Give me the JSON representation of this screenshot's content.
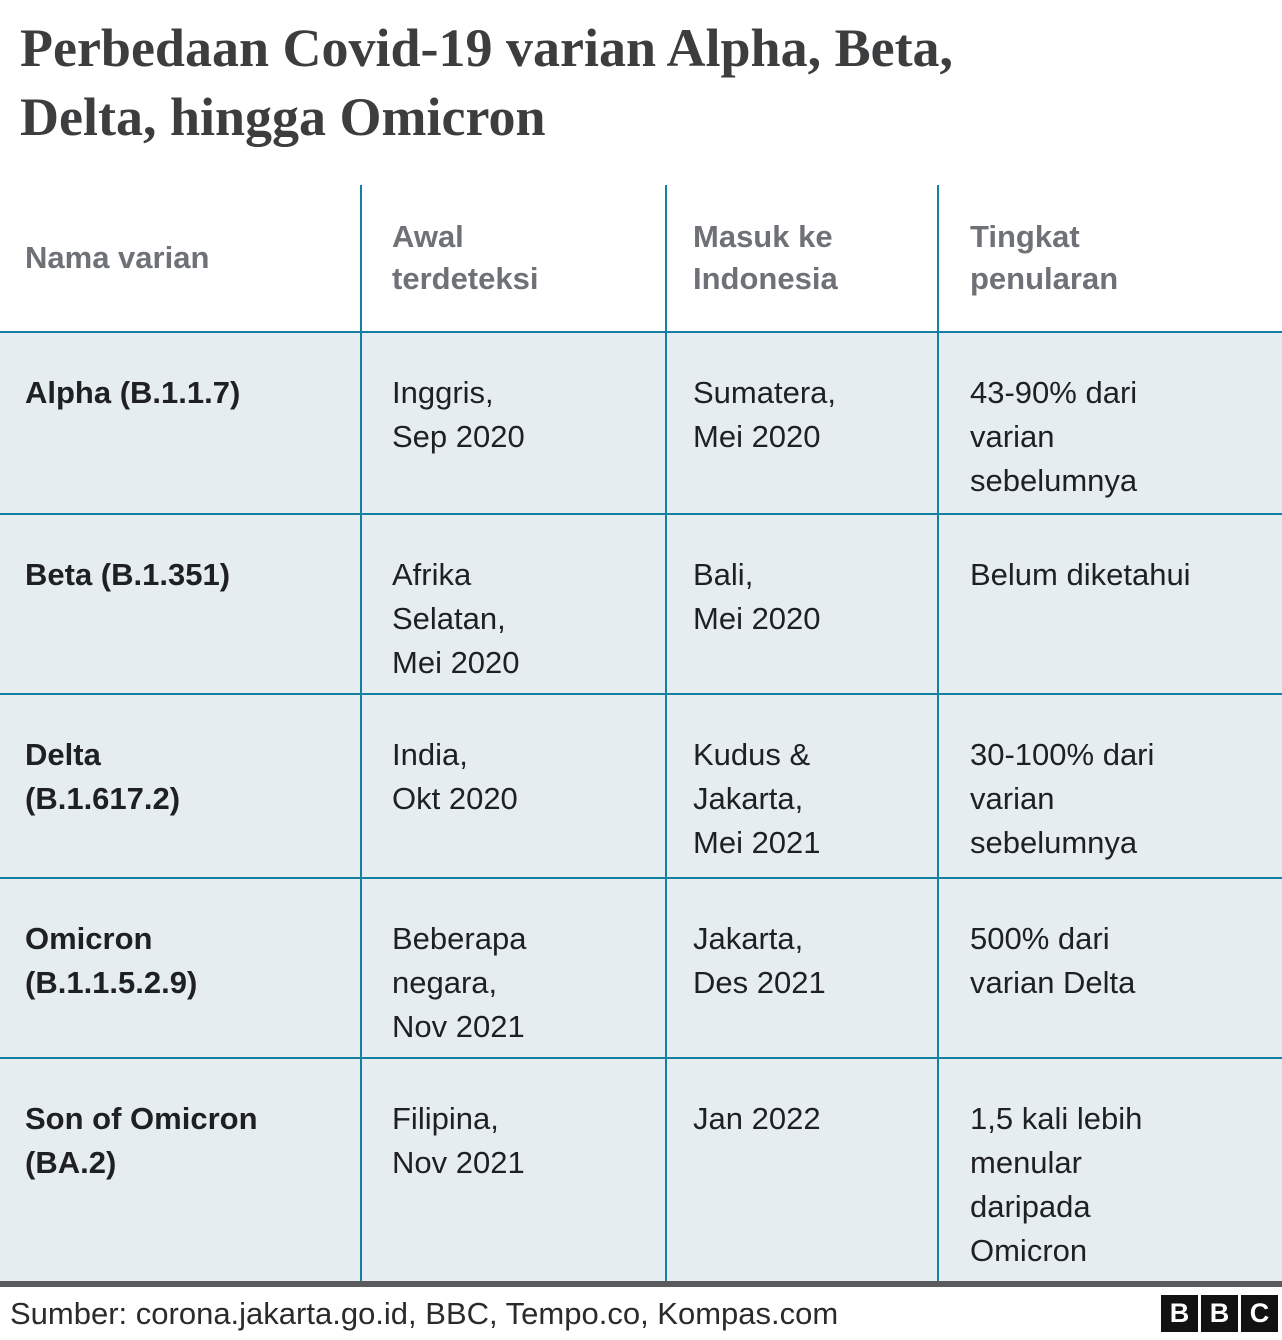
{
  "title": "Perbedaan Covid-19 varian Alpha, Beta,\nDelta, hingga Omicron",
  "table": {
    "columns": [
      "Nama varian",
      "Awal\nterdeteksi",
      "Masuk ke\nIndonesia",
      "Tingkat\npenularan"
    ],
    "rows": [
      {
        "name": "Alpha (B.1.1.7)",
        "detected": "Inggris,\nSep 2020",
        "entered": "Sumatera,\nMei 2020",
        "rate": "43-90% dari\nvarian\nsebelumnya"
      },
      {
        "name": "Beta (B.1.351)",
        "detected": "Afrika\nSelatan,\nMei 2020",
        "entered": "Bali,\nMei 2020",
        "rate": "Belum diketahui"
      },
      {
        "name": "Delta\n(B.1.617.2)",
        "detected": "India,\nOkt 2020",
        "entered": "Kudus &\nJakarta,\nMei 2021",
        "rate": "30-100% dari\nvarian\nsebelumnya"
      },
      {
        "name": "Omicron\n(B.1.1.5.2.9)",
        "detected": "Beberapa\nnegara,\nNov 2021",
        "entered": "Jakarta,\nDes 2021",
        "rate": "500% dari\nvarian Delta"
      },
      {
        "name": "Son of Omicron\n(BA.2)",
        "detected": "Filipina,\nNov 2021",
        "entered": "Jan 2022",
        "rate": "1,5 kali lebih\nmenular\ndaripada\nOmicron"
      }
    ]
  },
  "footer": {
    "source": "Sumber: corona.jakarta.go.id, BBC, Tempo.co, Kompas.com",
    "logo_letters": [
      "B",
      "B",
      "C"
    ]
  },
  "colors": {
    "accent_teal": "#1380a1",
    "row_background": "#e6edf0",
    "title_text": "#3b3d3f",
    "header_text": "#6e7276",
    "body_text": "#1e2022",
    "divider_bar": "#5a5b5d",
    "logo_block": "#121212"
  },
  "chart_data": {
    "type": "table",
    "title": "Perbedaan Covid-19 varian Alpha, Beta, Delta, hingga Omicron",
    "columns": [
      "Nama varian",
      "Awal terdeteksi",
      "Masuk ke Indonesia",
      "Tingkat penularan"
    ],
    "rows": [
      [
        "Alpha (B.1.1.7)",
        "Inggris, Sep 2020",
        "Sumatera, Mei 2020",
        "43-90% dari varian sebelumnya"
      ],
      [
        "Beta (B.1.351)",
        "Afrika Selatan, Mei 2020",
        "Bali, Mei 2020",
        "Belum diketahui"
      ],
      [
        "Delta (B.1.617.2)",
        "India, Okt 2020",
        "Kudus & Jakarta, Mei 2021",
        "30-100% dari varian sebelumnya"
      ],
      [
        "Omicron (B.1.1.5.2.9)",
        "Beberapa negara, Nov 2021",
        "Jakarta, Des 2021",
        "500% dari varian Delta"
      ],
      [
        "Son of Omicron (BA.2)",
        "Filipina, Nov 2021",
        "Jan 2022",
        "1,5 kali lebih menular daripada Omicron"
      ]
    ],
    "source": "Sumber: corona.jakarta.go.id, BBC, Tempo.co, Kompas.com"
  }
}
